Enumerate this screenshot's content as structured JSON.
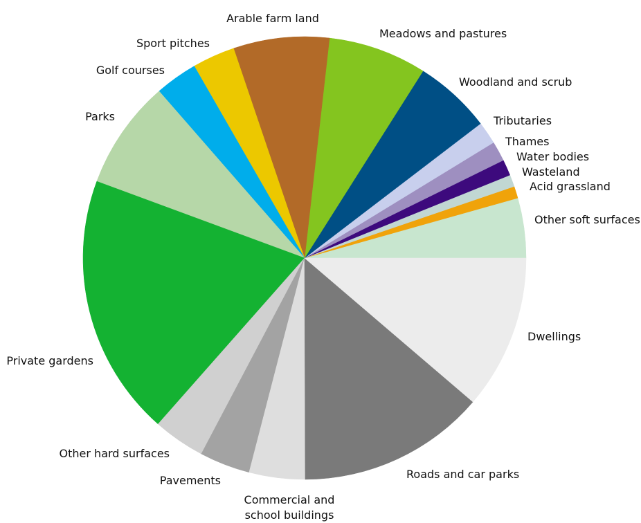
{
  "chart_data": {
    "type": "pie",
    "start_angle_deg": 0,
    "direction": "counterclockwise",
    "slices": [
      {
        "label": "Other soft surfaces",
        "value": 4.5,
        "color": "#c8e6cf"
      },
      {
        "label": "Acid grassland",
        "value": 0.9,
        "color": "#f0a30a"
      },
      {
        "label": "Wasteland",
        "value": 0.9,
        "color": "#c1d7d3"
      },
      {
        "label": "Water bodies",
        "value": 1.2,
        "color": "#3d0a7d"
      },
      {
        "label": "Thames",
        "value": 1.5,
        "color": "#9e8fc0"
      },
      {
        "label": "Tributaries",
        "value": 1.7,
        "color": "#c8cfed"
      },
      {
        "label": "Woodland and scrub",
        "value": 5.8,
        "color": "#004f85"
      },
      {
        "label": "Meadows and pastures",
        "value": 7.4,
        "color": "#84c51f"
      },
      {
        "label": "Arable farm land",
        "value": 7.2,
        "color": "#b26a28"
      },
      {
        "label": "Sport pitches",
        "value": 3.2,
        "color": "#ecc800"
      },
      {
        "label": "Golf courses",
        "value": 3.2,
        "color": "#00adeb"
      },
      {
        "label": "Parks",
        "value": 8.2,
        "color": "#b6d7a8"
      },
      {
        "label": "Private gardens",
        "value": 19.7,
        "color": "#14b232"
      },
      {
        "label": "Other hard surfaces",
        "value": 3.9,
        "color": "#d0d0d0"
      },
      {
        "label": "Pavements",
        "value": 3.8,
        "color": "#a3a3a3"
      },
      {
        "label": "Commercial and",
        "label2": "school buildings",
        "value": 4.2,
        "color": "#dedede"
      },
      {
        "label": "Roads and car parks",
        "value": 14.1,
        "color": "#7a7a7a"
      },
      {
        "label": "Dwellings",
        "value": 11.6,
        "color": "#ececec"
      }
    ]
  }
}
